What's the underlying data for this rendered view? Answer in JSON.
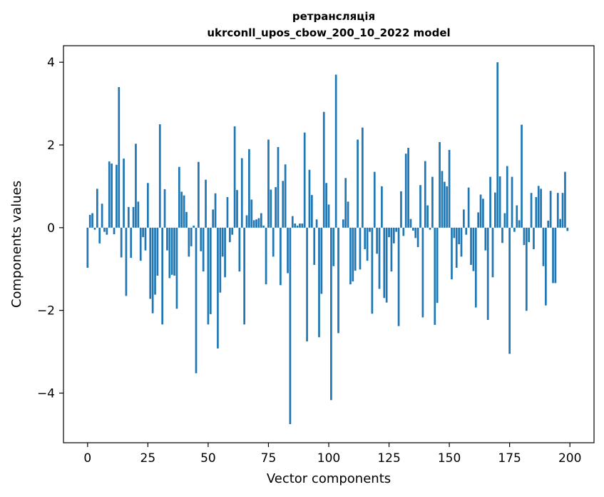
{
  "chart_data": {
    "type": "bar",
    "title_line1": "ретрансляція",
    "title_line2": "ukrconll_upos_cbow_200_10_2022 model",
    "xlabel": "Vector components",
    "ylabel": "Components values",
    "xlim": [
      -10,
      210
    ],
    "ylim": [
      -5.2,
      4.4
    ],
    "xticks": [
      0,
      25,
      50,
      75,
      100,
      125,
      150,
      175,
      200
    ],
    "xtick_labels": [
      "0",
      "25",
      "50",
      "75",
      "100",
      "125",
      "150",
      "175",
      "200"
    ],
    "yticks": [
      -4,
      -2,
      0,
      2,
      4
    ],
    "ytick_labels": [
      "−4",
      "−2",
      "0",
      "2",
      "4"
    ],
    "bar_color": "#1f77b4",
    "grid": false,
    "values": [
      -0.97,
      0.31,
      0.35,
      -0.05,
      0.94,
      -0.38,
      0.58,
      -0.1,
      -0.17,
      1.6,
      1.55,
      -0.16,
      1.52,
      3.4,
      -0.72,
      1.67,
      -1.65,
      0.5,
      -0.73,
      0.5,
      2.03,
      0.63,
      -0.8,
      -0.23,
      -0.55,
      1.08,
      -1.72,
      -2.07,
      -1.62,
      -1.16,
      2.5,
      -2.34,
      0.93,
      -0.55,
      -1.22,
      -1.14,
      -1.16,
      -1.96,
      1.47,
      0.87,
      0.78,
      0.38,
      -0.7,
      -0.45,
      0.05,
      -3.52,
      1.59,
      -0.57,
      -1.06,
      1.16,
      -2.34,
      -2.09,
      0.44,
      0.83,
      -2.92,
      -1.57,
      -0.7,
      -1.2,
      0.74,
      -0.35,
      -0.17,
      2.45,
      0.91,
      -1.06,
      1.68,
      -2.34,
      0.3,
      1.9,
      0.68,
      0.18,
      0.2,
      0.23,
      0.35,
      0.05,
      -1.37,
      2.13,
      0.92,
      -0.7,
      0.98,
      1.95,
      -1.39,
      1.13,
      1.53,
      -1.1,
      -4.75,
      0.28,
      0.1,
      0.05,
      0.1,
      0.1,
      2.3,
      -2.75,
      1.4,
      0.79,
      -0.9,
      0.2,
      -2.65,
      -1.6,
      2.8,
      1.08,
      0.56,
      -4.17,
      -0.93,
      3.7,
      -2.55,
      0.0,
      0.2,
      1.2,
      0.63,
      -1.37,
      -1.3,
      -1.04,
      2.13,
      -1.01,
      2.42,
      -0.52,
      -0.8,
      -0.1,
      -2.08,
      1.35,
      -0.63,
      -1.48,
      1.0,
      -1.7,
      -1.81,
      -0.23,
      -1.06,
      -0.38,
      -0.1,
      -2.38,
      0.88,
      -0.2,
      1.79,
      1.93,
      0.21,
      -0.07,
      -0.25,
      -0.47,
      1.03,
      -2.17,
      1.61,
      0.54,
      -0.05,
      1.23,
      -2.35,
      -1.82,
      2.07,
      1.37,
      1.11,
      1.0,
      1.88,
      -1.25,
      -0.25,
      -0.97,
      -0.4,
      -0.7,
      0.44,
      -0.17,
      0.97,
      -0.9,
      -1.05,
      -1.93,
      0.37,
      0.8,
      0.7,
      -0.55,
      -2.23,
      1.23,
      -1.2,
      0.85,
      4.0,
      1.24,
      -0.37,
      0.35,
      1.49,
      -3.05,
      1.23,
      -0.1,
      0.54,
      0.18,
      2.49,
      -0.42,
      -2.01,
      -0.35,
      0.84,
      -0.52,
      0.74,
      1.01,
      0.94,
      -0.93,
      -1.88,
      0.17,
      0.89,
      -1.34,
      -1.34,
      0.84,
      0.21,
      0.84,
      1.35,
      -0.08
    ]
  }
}
